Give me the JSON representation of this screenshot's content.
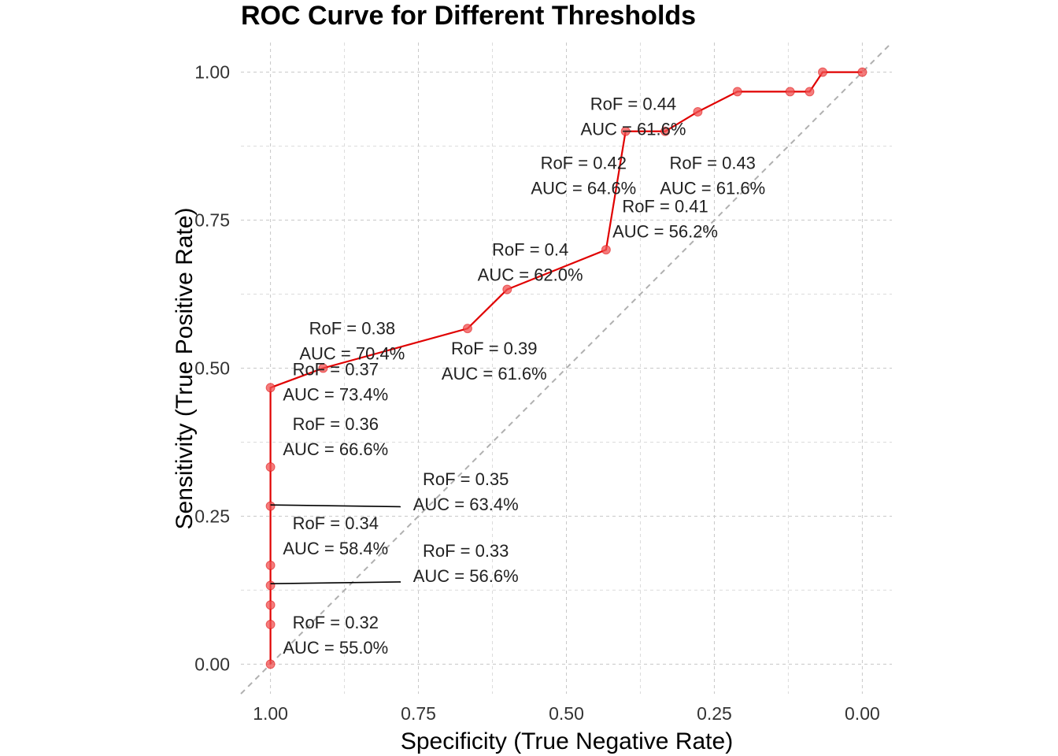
{
  "chart_data": {
    "type": "line",
    "title": "ROC Curve for Different Thresholds",
    "xlabel": "Specificity (True Negative Rate)",
    "ylabel": "Sensitivity (True Positive Rate)",
    "x_reversed": true,
    "xlim": [
      1.05,
      -0.05
    ],
    "ylim": [
      -0.05,
      1.05
    ],
    "x_ticks": [
      "1.00",
      "0.75",
      "0.50",
      "0.25",
      "0.00"
    ],
    "x_tick_values": [
      1.0,
      0.75,
      0.5,
      0.25,
      0.0
    ],
    "y_ticks": [
      "0.00",
      "0.25",
      "0.50",
      "0.75",
      "1.00"
    ],
    "y_tick_values": [
      0.0,
      0.25,
      0.5,
      0.75,
      1.0
    ],
    "grid": true,
    "diagonal_reference": true,
    "colors": {
      "curve": "#e00000",
      "points": "#f05050",
      "diagonal": "#b0b0b0",
      "leader": "#000000"
    },
    "series": [
      {
        "specificity": [
          1.0,
          1.0,
          1.0,
          1.0,
          1.0,
          1.0,
          1.0,
          1.0,
          0.911,
          0.667,
          0.6,
          0.433,
          0.4,
          0.333,
          0.278,
          0.211,
          0.122,
          0.089,
          0.067,
          0.0
        ],
        "sensitivity": [
          0.0,
          0.067,
          0.1,
          0.133,
          0.167,
          0.267,
          0.333,
          0.467,
          0.5,
          0.567,
          0.633,
          0.7,
          0.9,
          0.9,
          0.933,
          0.967,
          0.967,
          0.967,
          1.0,
          1.0
        ]
      }
    ],
    "annotations": [
      {
        "line1": "RoF = 0.32",
        "line2": "AUC = 55.0%",
        "x": 0.89,
        "y": 0.047,
        "leader": null
      },
      {
        "line1": "RoF = 0.33",
        "line2": "AUC = 56.6%",
        "x": 0.67,
        "y": 0.168,
        "leader": {
          "x0": 1.0,
          "y0": 0.136,
          "x1": 0.78,
          "y1": 0.139
        }
      },
      {
        "line1": "RoF = 0.34",
        "line2": "AUC = 58.4%",
        "x": 0.89,
        "y": 0.215,
        "leader": null
      },
      {
        "line1": "RoF = 0.35",
        "line2": "AUC = 63.4%",
        "x": 0.67,
        "y": 0.289,
        "leader": {
          "x0": 1.0,
          "y0": 0.269,
          "x1": 0.78,
          "y1": 0.266
        }
      },
      {
        "line1": "RoF = 0.36",
        "line2": "AUC = 66.6%",
        "x": 0.89,
        "y": 0.382,
        "leader": null
      },
      {
        "line1": "RoF = 0.37",
        "line2": "AUC = 73.4%",
        "x": 0.89,
        "y": 0.475,
        "leader": null
      },
      {
        "line1": "RoF = 0.38",
        "line2": "AUC = 70.4%",
        "x": 0.862,
        "y": 0.544,
        "leader": null
      },
      {
        "line1": "RoF = 0.39",
        "line2": "AUC = 61.6%",
        "x": 0.622,
        "y": 0.51,
        "leader": null
      },
      {
        "line1": "RoF = 0.4",
        "line2": "AUC = 62.0%",
        "x": 0.561,
        "y": 0.677,
        "leader": null
      },
      {
        "line1": "RoF = 0.41",
        "line2": "AUC = 56.2%",
        "x": 0.333,
        "y": 0.75,
        "leader": null
      },
      {
        "line1": "RoF = 0.42",
        "line2": "AUC = 64.6%",
        "x": 0.471,
        "y": 0.823,
        "leader": null
      },
      {
        "line1": "RoF = 0.43",
        "line2": "AUC = 61.6%",
        "x": 0.253,
        "y": 0.823,
        "leader": null
      },
      {
        "line1": "RoF = 0.44",
        "line2": "AUC = 61.6%",
        "x": 0.387,
        "y": 0.923,
        "leader": null
      }
    ]
  }
}
